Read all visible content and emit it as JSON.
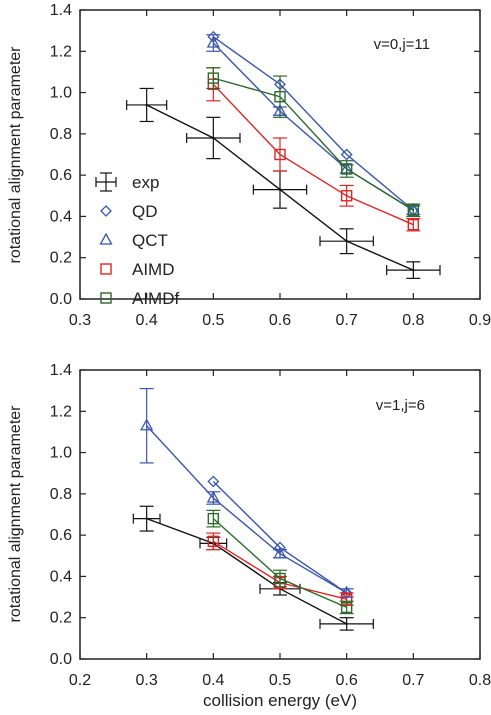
{
  "chart_data": [
    {
      "type": "scatter",
      "annotation": "v=0,j=11",
      "ylabel": "rotational alignment parameter",
      "xlabel": "",
      "xlim": [
        0.3,
        0.9
      ],
      "ylim": [
        0.0,
        1.4
      ],
      "xticks": [
        "0.3",
        "0.4",
        "0.5",
        "0.6",
        "0.7",
        "0.8",
        "0.9"
      ],
      "yticks": [
        "0.0",
        "0.2",
        "0.4",
        "0.6",
        "0.8",
        "1.0",
        "1.2",
        "1.4"
      ],
      "legend": {
        "position": "left-middle",
        "entries": [
          "exp",
          "QD",
          "QCT",
          "AIMD",
          "AIMDf"
        ]
      },
      "series": [
        {
          "name": "exp",
          "color": "#111111",
          "marker": "cross",
          "x": [
            0.4,
            0.5,
            0.6,
            0.7,
            0.8
          ],
          "y": [
            0.94,
            0.78,
            0.53,
            0.28,
            0.14
          ],
          "yerr": [
            0.08,
            0.1,
            0.09,
            0.06,
            0.04
          ],
          "xerr": [
            0.03,
            0.04,
            0.04,
            0.04,
            0.04
          ]
        },
        {
          "name": "QD",
          "color": "#3a56b0",
          "marker": "diamond",
          "x": [
            0.5,
            0.6,
            0.7,
            0.8
          ],
          "y": [
            1.27,
            1.04,
            0.7,
            0.43
          ],
          "yerr": [
            0,
            0,
            0,
            0
          ]
        },
        {
          "name": "QCT",
          "color": "#3a56b0",
          "marker": "triangle",
          "x": [
            0.5,
            0.6,
            0.7,
            0.8
          ],
          "y": [
            1.24,
            0.91,
            0.63,
            0.43
          ],
          "yerr": [
            0.04,
            0.02,
            0.02,
            0.02
          ]
        },
        {
          "name": "AIMD",
          "color": "#e02424",
          "marker": "square",
          "x": [
            0.5,
            0.6,
            0.7,
            0.8
          ],
          "y": [
            1.04,
            0.7,
            0.5,
            0.36
          ],
          "yerr": [
            0.08,
            0.08,
            0.05,
            0.03
          ]
        },
        {
          "name": "AIMDf",
          "color": "#2a6a2a",
          "marker": "square",
          "x": [
            0.5,
            0.6,
            0.7,
            0.8
          ],
          "y": [
            1.07,
            0.98,
            0.63,
            0.43
          ],
          "yerr": [
            0.05,
            0.1,
            0.04,
            0.03
          ]
        }
      ]
    },
    {
      "type": "scatter",
      "annotation": "v=1,j=6",
      "ylabel": "rotational alignment parameter",
      "xlabel": "collision energy (eV)",
      "xlim": [
        0.2,
        0.8
      ],
      "ylim": [
        0.0,
        1.4
      ],
      "xticks": [
        "0.2",
        "0.3",
        "0.4",
        "0.5",
        "0.6",
        "0.7",
        "0.8"
      ],
      "yticks": [
        "0.0",
        "0.2",
        "0.4",
        "0.6",
        "0.8",
        "1.0",
        "1.2",
        "1.4"
      ],
      "series": [
        {
          "name": "exp",
          "color": "#111111",
          "marker": "cross",
          "x": [
            0.3,
            0.4,
            0.5,
            0.6
          ],
          "y": [
            0.68,
            0.56,
            0.34,
            0.17
          ],
          "yerr": [
            0.06,
            0.03,
            0.03,
            0.03
          ],
          "xerr": [
            0.02,
            0.02,
            0.03,
            0.04
          ]
        },
        {
          "name": "QD",
          "color": "#3a56b0",
          "marker": "diamond",
          "x": [
            0.4,
            0.5,
            0.6
          ],
          "y": [
            0.86,
            0.54,
            0.32
          ],
          "yerr": [
            0,
            0,
            0
          ]
        },
        {
          "name": "QCT",
          "color": "#3a56b0",
          "marker": "triangle",
          "x": [
            0.3,
            0.4,
            0.5,
            0.6
          ],
          "y": [
            1.13,
            0.78,
            0.51,
            0.32
          ],
          "yerr": [
            0.18,
            0.03,
            0.02,
            0.02
          ]
        },
        {
          "name": "AIMD",
          "color": "#e02424",
          "marker": "square",
          "x": [
            0.4,
            0.5,
            0.6
          ],
          "y": [
            0.57,
            0.37,
            0.29
          ],
          "yerr": [
            0.04,
            0.03,
            0.03
          ]
        },
        {
          "name": "AIMDf",
          "color": "#2a6a2a",
          "marker": "square",
          "x": [
            0.4,
            0.5,
            0.6
          ],
          "y": [
            0.68,
            0.39,
            0.25
          ],
          "yerr": [
            0.04,
            0.04,
            0.03
          ]
        }
      ]
    }
  ]
}
